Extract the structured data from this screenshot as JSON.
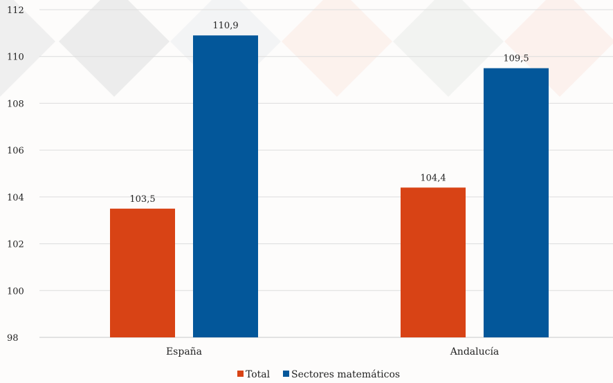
{
  "chart_data": {
    "type": "bar",
    "categories": [
      "España",
      "Andalucía"
    ],
    "series": [
      {
        "name": "Total",
        "values": [
          103.5,
          104.4
        ],
        "labels": [
          "103,5",
          "104,4"
        ],
        "color": "#d84315"
      },
      {
        "name": "Sectores matemáticos",
        "values": [
          110.9,
          109.5
        ],
        "labels": [
          "110,9",
          "109,5"
        ],
        "color": "#03579a"
      }
    ],
    "ylim": [
      98,
      112
    ],
    "yticks": [
      "98",
      "100",
      "102",
      "104",
      "106",
      "108",
      "110",
      "112"
    ],
    "ytick_values": [
      98,
      100,
      102,
      104,
      106,
      108,
      110,
      112
    ],
    "grid": true,
    "legend": "bottom-center",
    "title": "",
    "xlabel": "",
    "ylabel": ""
  }
}
